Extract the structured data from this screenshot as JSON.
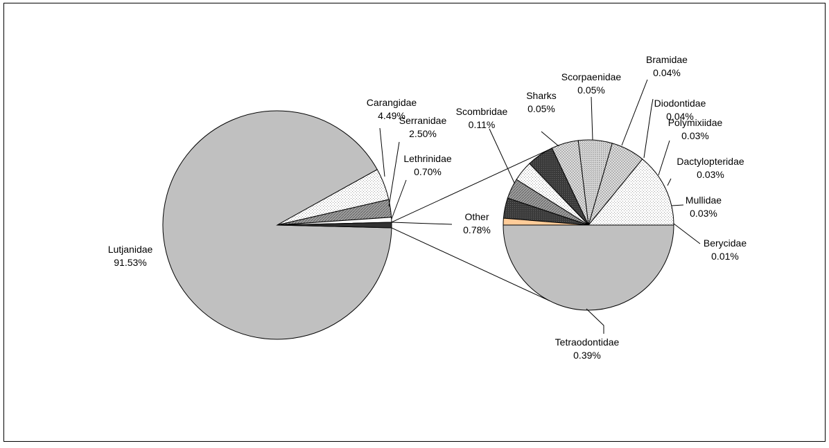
{
  "chart_data": {
    "type": "pie",
    "variant": "bar-of-pie",
    "title": "",
    "primary": {
      "slices": [
        {
          "label": "Lutjanidae",
          "value": 91.53,
          "value_label": "91.53%"
        },
        {
          "label": "Carangidae",
          "value": 4.49,
          "value_label": "4.49%"
        },
        {
          "label": "Serranidae",
          "value": 2.5,
          "value_label": "2.50%"
        },
        {
          "label": "Lethrinidae",
          "value": 0.7,
          "value_label": "0.70%"
        },
        {
          "label": "Other",
          "value": 0.78,
          "value_label": "0.78%"
        }
      ]
    },
    "secondary": {
      "slices": [
        {
          "label": "Tetraodontidae",
          "value": 0.39,
          "value_label": "0.39%"
        },
        {
          "label": "Scombridae",
          "value": 0.11,
          "value_label": "0.11%"
        },
        {
          "label": "Sharks",
          "value": 0.05,
          "value_label": "0.05%"
        },
        {
          "label": "Scorpaenidae",
          "value": 0.05,
          "value_label": "0.05%"
        },
        {
          "label": "Bramidae",
          "value": 0.04,
          "value_label": "0.04%"
        },
        {
          "label": "Diodontidae",
          "value": 0.04,
          "value_label": "0.04%"
        },
        {
          "label": "Polymixiidae",
          "value": 0.03,
          "value_label": "0.03%"
        },
        {
          "label": "Dactylopteridae",
          "value": 0.03,
          "value_label": "0.03%"
        },
        {
          "label": "Mullidae",
          "value": 0.03,
          "value_label": "0.03%"
        },
        {
          "label": "Berycidae",
          "value": 0.01,
          "value_label": "0.01%"
        }
      ]
    },
    "colors": {
      "light_gray": "#c0c0c0",
      "dark_gray": "#333333",
      "mid_gray": "#8c8c8c",
      "white": "#ffffff",
      "peach": "#ffcc99",
      "border": "#000000"
    },
    "legend": "none"
  }
}
